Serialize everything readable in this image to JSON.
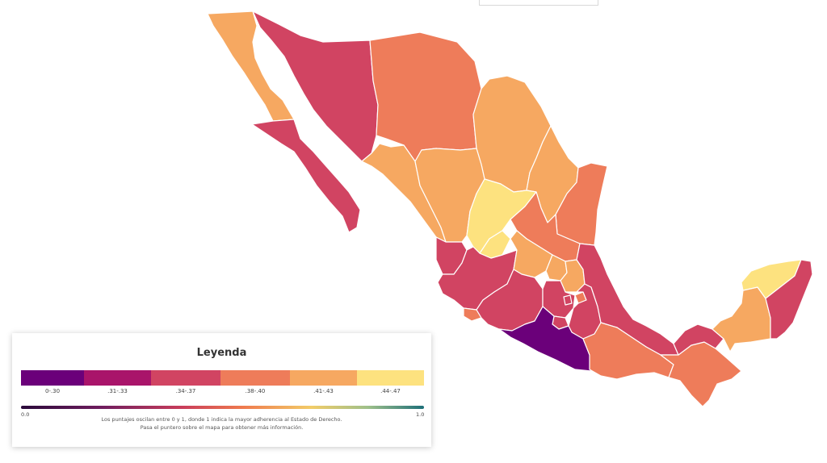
{
  "legend": {
    "title": "Leyenda",
    "bins": [
      {
        "label": "0-.30",
        "color": "#6b007a"
      },
      {
        "label": ".31-.33",
        "color": "#a9146a"
      },
      {
        "label": ".34-.37",
        "color": "#d14462"
      },
      {
        "label": ".38-.40",
        "color": "#ee7c5a"
      },
      {
        "label": ".41-.43",
        "color": "#f6a861"
      },
      {
        "label": ".44-.47",
        "color": "#fde27f"
      }
    ],
    "scale_min": "0.0",
    "scale_max": "1.0",
    "note_line1": "Los puntajes oscilan entre 0 y 1, donde 1 indica la mayor adherencia al Estado de Derecho.",
    "note_line2": "Pasa el puntero sobre el mapa para obtener más información."
  },
  "map": {
    "regions": [
      {
        "id": "baja-california",
        "bin": 4
      },
      {
        "id": "baja-california-sur",
        "bin": 2
      },
      {
        "id": "sonora",
        "bin": 2
      },
      {
        "id": "chihuahua",
        "bin": 3
      },
      {
        "id": "coahuila",
        "bin": 4
      },
      {
        "id": "nuevo-leon",
        "bin": 4
      },
      {
        "id": "tamaulipas",
        "bin": 3
      },
      {
        "id": "sinaloa",
        "bin": 4
      },
      {
        "id": "durango",
        "bin": 4
      },
      {
        "id": "zacatecas",
        "bin": 5
      },
      {
        "id": "san-luis-potosi",
        "bin": 3
      },
      {
        "id": "nayarit",
        "bin": 2
      },
      {
        "id": "jalisco",
        "bin": 2
      },
      {
        "id": "aguascalientes",
        "bin": 5
      },
      {
        "id": "guanajuato",
        "bin": 4
      },
      {
        "id": "queretaro",
        "bin": 4
      },
      {
        "id": "hidalgo",
        "bin": 4
      },
      {
        "id": "colima",
        "bin": 3
      },
      {
        "id": "michoacan",
        "bin": 2
      },
      {
        "id": "mexico-state",
        "bin": 2
      },
      {
        "id": "cdmx",
        "bin": 2
      },
      {
        "id": "morelos",
        "bin": 2
      },
      {
        "id": "tlaxcala",
        "bin": 3
      },
      {
        "id": "puebla",
        "bin": 2
      },
      {
        "id": "veracruz",
        "bin": 2
      },
      {
        "id": "guerrero",
        "bin": 0
      },
      {
        "id": "oaxaca",
        "bin": 3
      },
      {
        "id": "chiapas",
        "bin": 3
      },
      {
        "id": "tabasco",
        "bin": 2
      },
      {
        "id": "campeche",
        "bin": 4
      },
      {
        "id": "yucatan",
        "bin": 5
      },
      {
        "id": "quintana-roo",
        "bin": 2
      }
    ]
  }
}
